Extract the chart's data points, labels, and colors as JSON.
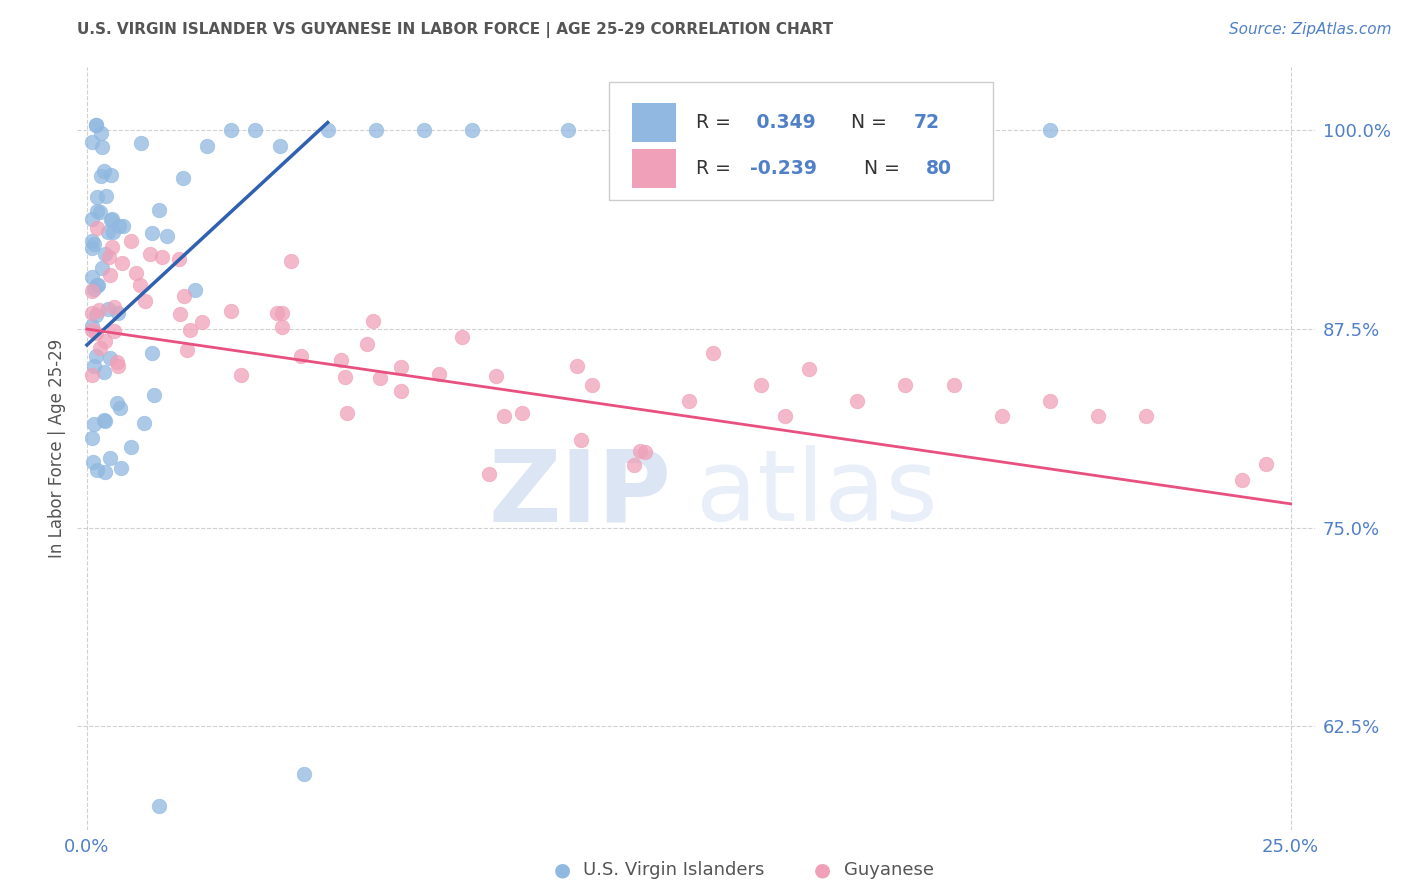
{
  "title": "U.S. VIRGIN ISLANDER VS GUYANESE IN LABOR FORCE | AGE 25-29 CORRELATION CHART",
  "source": "Source: ZipAtlas.com",
  "ylabel": "In Labor Force | Age 25-29",
  "xlim": [
    -0.002,
    0.255
  ],
  "ylim": [
    0.56,
    1.04
  ],
  "xticks": [
    0.0,
    0.25
  ],
  "xticklabels": [
    "0.0%",
    "25.0%"
  ],
  "yticks": [
    0.625,
    0.75,
    0.875,
    1.0
  ],
  "yticklabels": [
    "62.5%",
    "75.0%",
    "87.5%",
    "100.0%"
  ],
  "blue_R": 0.349,
  "blue_N": 72,
  "pink_R": -0.239,
  "pink_N": 80,
  "blue_color": "#90b8e0",
  "pink_color": "#f0a0b8",
  "blue_line_color": "#3060b0",
  "pink_line_color": "#e85080",
  "legend_label_blue": "U.S. Virgin Islanders",
  "legend_label_pink": "Guyanese",
  "watermark_zip": "ZIP",
  "watermark_atlas": "atlas",
  "title_color": "#555555",
  "axis_tick_color": "#5080c8",
  "source_color": "#5080c8",
  "background_color": "#ffffff",
  "grid_color": "#cccccc",
  "ylabel_color": "#555555",
  "legend_border_color": "#cccccc",
  "tick_label_fontsize": 13,
  "title_fontsize": 11,
  "source_fontsize": 11
}
